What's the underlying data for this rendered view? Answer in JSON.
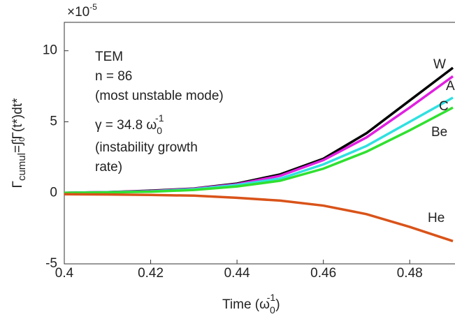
{
  "chart_data": {
    "type": "line",
    "multiplier": [
      "×10",
      "-5"
    ],
    "xlabel": [
      "Time (ω",
      "0",
      "-1",
      ")"
    ],
    "ylabel": [
      "Γ",
      "cumul",
      "=∫",
      "0",
      "t",
      "Γ(t*)dt*"
    ],
    "annotation": {
      "lines": [
        "TEM",
        "n = 86",
        "(most unstable mode)"
      ],
      "gamma": [
        "γ = 34.8 ω",
        "0",
        "-1"
      ],
      "rest": [
        "(instability growth",
        "rate)"
      ]
    },
    "x": [
      0.4,
      0.41,
      0.42,
      0.43,
      0.44,
      0.45,
      0.46,
      0.47,
      0.48,
      0.49
    ],
    "series": [
      {
        "name": "W",
        "color": "#000000",
        "values": [
          0,
          0.05,
          0.15,
          0.3,
          0.65,
          1.3,
          2.4,
          4.2,
          6.5,
          8.8
        ]
      },
      {
        "name": "A",
        "color": "#e020e0",
        "values": [
          0,
          0.05,
          0.12,
          0.28,
          0.6,
          1.2,
          2.3,
          3.9,
          6.0,
          8.2
        ]
      },
      {
        "name": "C",
        "color": "#30e0e0",
        "values": [
          0,
          0.04,
          0.1,
          0.25,
          0.55,
          1.0,
          2.0,
          3.3,
          5.0,
          6.7
        ]
      },
      {
        "name": "Be",
        "color": "#30e030",
        "values": [
          0,
          0.03,
          0.08,
          0.2,
          0.45,
          0.85,
          1.7,
          2.9,
          4.4,
          6.0
        ]
      },
      {
        "name": "He",
        "color": "#d95319",
        "values": [
          -0.1,
          -0.12,
          -0.15,
          -0.2,
          -0.35,
          -0.55,
          -0.9,
          -1.5,
          -2.4,
          -3.4
        ]
      }
    ],
    "xlim": [
      0.4,
      0.49
    ],
    "ylim": [
      -5,
      12
    ],
    "xticks": [
      0.4,
      0.42,
      0.44,
      0.46,
      0.48
    ],
    "yticks": [
      -5,
      0,
      5,
      10
    ]
  }
}
